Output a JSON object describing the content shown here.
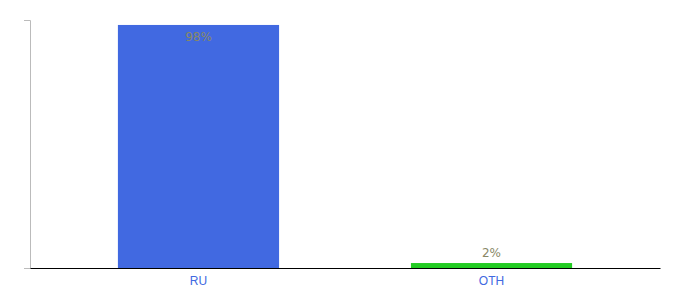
{
  "chart_data": {
    "type": "bar",
    "categories": [
      "RU",
      "OTH"
    ],
    "values": [
      98,
      2
    ],
    "colors": [
      "#4169e1",
      "#22cc22"
    ],
    "ylim": [
      0,
      100
    ],
    "tick_labels": "x",
    "data_labels": true,
    "value_labels": [
      "98%",
      "2%"
    ]
  }
}
